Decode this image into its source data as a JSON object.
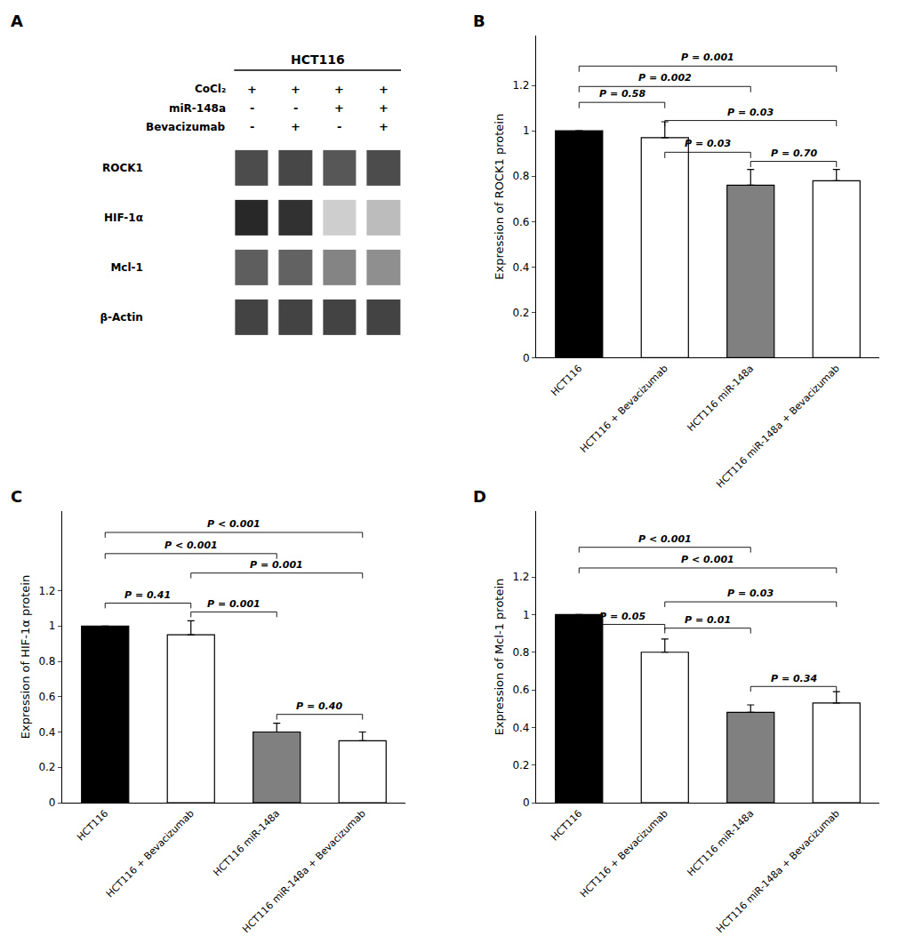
{
  "chart_data": [
    {
      "type": "heatmap",
      "title": "A",
      "subtitle": "HCT116",
      "categories": [
        null,
        null,
        null,
        null
      ],
      "rows": [
        "ROCK1",
        "HIF-1α",
        "Mcl-1",
        "β-Actin"
      ],
      "cells": [
        [
          0.8,
          0.82,
          0.75,
          0.8
        ],
        [
          0.96,
          0.92,
          0.22,
          0.3
        ],
        [
          0.72,
          0.7,
          0.55,
          0.5
        ],
        [
          0.84,
          0.84,
          0.84,
          0.84
        ]
      ],
      "zlim": [
        0,
        1
      ],
      "conditions": [
        {
          "name": "CoCl₂",
          "signs": [
            "+",
            "+",
            "+",
            "+"
          ]
        },
        {
          "name": "miR-148a",
          "signs": [
            "-",
            "-",
            "+",
            "+"
          ]
        },
        {
          "name": "Bevacizumab",
          "signs": [
            "-",
            "+",
            "-",
            "+"
          ]
        }
      ],
      "tick_labels": "y",
      "grid": false
    },
    {
      "type": "bar",
      "title": "B",
      "ylabel": "Expression of ROCK1 protein",
      "categories": [
        "HCT116",
        "HCT116 + Bevacizumab",
        "HCT116 miR-148a",
        "HCT116 miR-148a + Bevacizumab"
      ],
      "values": [
        1.0,
        0.97,
        0.76,
        0.78
      ],
      "errors": [
        0.0,
        0.07,
        0.07,
        0.05
      ],
      "colors": [
        "#000000",
        "#ffffff",
        "#808080",
        "#ffffff"
      ],
      "ylim": [
        0,
        1.42
      ],
      "yticks": [
        0,
        0.2,
        0.4,
        0.6,
        0.8,
        1,
        1.2
      ],
      "grid": false,
      "annotations": [
        {
          "x1": 0,
          "x2": 1,
          "y": 1.1,
          "label": "P = 0.58"
        },
        {
          "x1": 1,
          "x2": 2,
          "y": 0.88,
          "label": "P = 0.03"
        },
        {
          "x1": 2,
          "x2": 3,
          "y": 0.84,
          "label": "P = 0.70"
        },
        {
          "x1": 1,
          "x2": 3,
          "y": 1.02,
          "label": "P = 0.03"
        },
        {
          "x1": 0,
          "x2": 2,
          "y": 1.17,
          "label": "P = 0.002"
        },
        {
          "x1": 0,
          "x2": 3,
          "y": 1.26,
          "label": "P = 0.001"
        }
      ]
    },
    {
      "type": "bar",
      "title": "C",
      "ylabel": "Expression of HIF-1α protein",
      "categories": [
        "HCT116",
        "HCT116 + Bevacizumab",
        "HCT116 miR-148a",
        "HCT116 miR-148a + Bevacizumab"
      ],
      "values": [
        1.0,
        0.95,
        0.4,
        0.35
      ],
      "errors": [
        0.0,
        0.08,
        0.05,
        0.05
      ],
      "colors": [
        "#000000",
        "#ffffff",
        "#808080",
        "#ffffff"
      ],
      "ylim": [
        0,
        1.65
      ],
      "yticks": [
        0,
        0.2,
        0.4,
        0.6,
        0.8,
        1,
        1.2
      ],
      "grid": false,
      "annotations": [
        {
          "x1": 0,
          "x2": 1,
          "y": 1.1,
          "label": "P = 0.41"
        },
        {
          "x1": 1,
          "x2": 2,
          "y": 1.05,
          "label": "P = 0.001"
        },
        {
          "x1": 2,
          "x2": 3,
          "y": 0.47,
          "label": "P = 0.40"
        },
        {
          "x1": 1,
          "x2": 3,
          "y": 1.27,
          "label": "P = 0.001"
        },
        {
          "x1": 0,
          "x2": 2,
          "y": 1.38,
          "label": "P < 0.001"
        },
        {
          "x1": 0,
          "x2": 3,
          "y": 1.5,
          "label": "P < 0.001"
        }
      ]
    },
    {
      "type": "bar",
      "title": "D",
      "ylabel": "Expression of Mcl-1 protein",
      "categories": [
        "HCT116",
        "HCT116 + Bevacizumab",
        "HCT116 miR-148a",
        "HCT116 miR-148a + Bevacizumab"
      ],
      "values": [
        1.0,
        0.8,
        0.48,
        0.53
      ],
      "errors": [
        0.0,
        0.07,
        0.04,
        0.06
      ],
      "colors": [
        "#000000",
        "#ffffff",
        "#808080",
        "#ffffff"
      ],
      "ylim": [
        0,
        1.55
      ],
      "yticks": [
        0,
        0.2,
        0.4,
        0.6,
        0.8,
        1,
        1.2
      ],
      "grid": false,
      "annotations": [
        {
          "x1": 0,
          "x2": 1,
          "y": 0.92,
          "label": "P = 0.05"
        },
        {
          "x1": 1,
          "x2": 2,
          "y": 0.9,
          "label": "P = 0.01"
        },
        {
          "x1": 2,
          "x2": 3,
          "y": 0.59,
          "label": "P = 0.34"
        },
        {
          "x1": 1,
          "x2": 3,
          "y": 1.04,
          "label": "P = 0.03"
        },
        {
          "x1": 0,
          "x2": 3,
          "y": 1.22,
          "label": "P < 0.001"
        },
        {
          "x1": 0,
          "x2": 2,
          "y": 1.33,
          "label": "P < 0.001"
        }
      ]
    }
  ]
}
